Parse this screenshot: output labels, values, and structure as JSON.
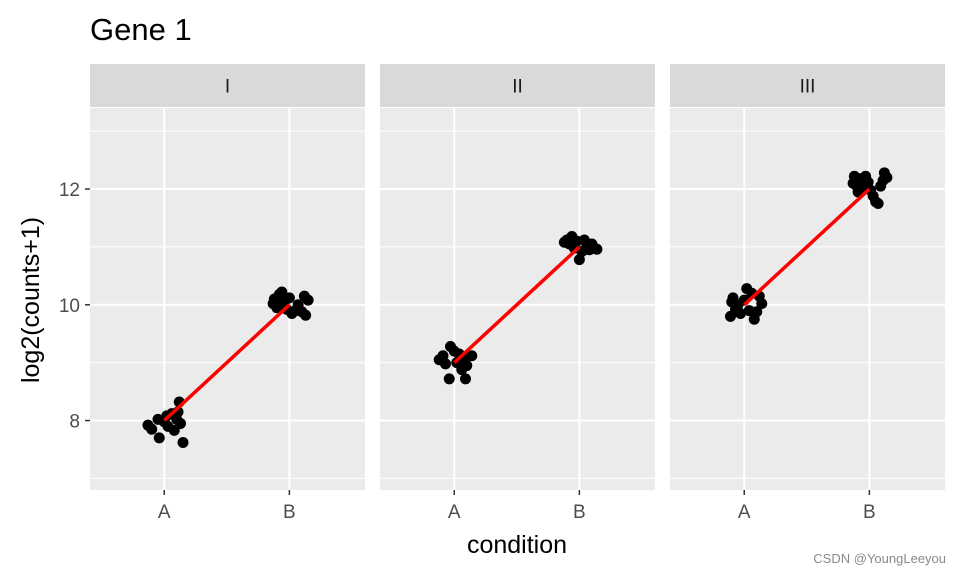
{
  "chart_data": {
    "type": "scatter",
    "title": "Gene 1",
    "xlabel": "condition",
    "ylabel": "log2(counts+1)",
    "categories": [
      "A",
      "B"
    ],
    "ylim": [
      6.8,
      13.4
    ],
    "y_ticks": [
      8,
      10,
      12
    ],
    "grid": true,
    "colors": {
      "panel_bg": "#ebebeb",
      "strip_bg": "#d9d9d9",
      "grid": "#ffffff",
      "points": "#000000",
      "fit_line": "#ff0000"
    },
    "panels": [
      {
        "label": "I",
        "fit": [
          {
            "x": "A",
            "y": 8.0
          },
          {
            "x": "B",
            "y": 10.0
          }
        ],
        "points": [
          {
            "x": "A",
            "jitter": -0.13,
            "y": 7.92
          },
          {
            "x": "A",
            "jitter": -0.1,
            "y": 7.85
          },
          {
            "x": "A",
            "jitter": -0.05,
            "y": 8.02
          },
          {
            "x": "A",
            "jitter": -0.04,
            "y": 7.7
          },
          {
            "x": "A",
            "jitter": 0.0,
            "y": 7.98
          },
          {
            "x": "A",
            "jitter": 0.02,
            "y": 8.08
          },
          {
            "x": "A",
            "jitter": 0.03,
            "y": 7.9
          },
          {
            "x": "A",
            "jitter": 0.06,
            "y": 8.12
          },
          {
            "x": "A",
            "jitter": 0.08,
            "y": 7.83
          },
          {
            "x": "A",
            "jitter": 0.1,
            "y": 8.02
          },
          {
            "x": "A",
            "jitter": 0.11,
            "y": 8.15
          },
          {
            "x": "A",
            "jitter": 0.12,
            "y": 8.32
          },
          {
            "x": "A",
            "jitter": 0.13,
            "y": 7.95
          },
          {
            "x": "A",
            "jitter": 0.15,
            "y": 7.62
          },
          {
            "x": "B",
            "jitter": -0.13,
            "y": 10.02
          },
          {
            "x": "B",
            "jitter": -0.12,
            "y": 10.1
          },
          {
            "x": "B",
            "jitter": -0.1,
            "y": 9.95
          },
          {
            "x": "B",
            "jitter": -0.08,
            "y": 10.18
          },
          {
            "x": "B",
            "jitter": -0.06,
            "y": 10.22
          },
          {
            "x": "B",
            "jitter": -0.04,
            "y": 10.05
          },
          {
            "x": "B",
            "jitter": -0.02,
            "y": 9.92
          },
          {
            "x": "B",
            "jitter": 0.0,
            "y": 10.12
          },
          {
            "x": "B",
            "jitter": 0.02,
            "y": 9.85
          },
          {
            "x": "B",
            "jitter": 0.05,
            "y": 9.9
          },
          {
            "x": "B",
            "jitter": 0.07,
            "y": 10.0
          },
          {
            "x": "B",
            "jitter": 0.1,
            "y": 9.88
          },
          {
            "x": "B",
            "jitter": 0.12,
            "y": 10.15
          },
          {
            "x": "B",
            "jitter": 0.13,
            "y": 9.82
          },
          {
            "x": "B",
            "jitter": 0.15,
            "y": 10.08
          }
        ]
      },
      {
        "label": "II",
        "fit": [
          {
            "x": "A",
            "y": 9.0
          },
          {
            "x": "B",
            "y": 11.0
          }
        ],
        "points": [
          {
            "x": "A",
            "jitter": -0.12,
            "y": 9.05
          },
          {
            "x": "A",
            "jitter": -0.09,
            "y": 9.12
          },
          {
            "x": "A",
            "jitter": -0.07,
            "y": 8.98
          },
          {
            "x": "A",
            "jitter": -0.04,
            "y": 8.72
          },
          {
            "x": "A",
            "jitter": -0.03,
            "y": 9.28
          },
          {
            "x": "A",
            "jitter": 0.0,
            "y": 9.2
          },
          {
            "x": "A",
            "jitter": 0.02,
            "y": 9.0
          },
          {
            "x": "A",
            "jitter": 0.04,
            "y": 9.15
          },
          {
            "x": "A",
            "jitter": 0.06,
            "y": 8.88
          },
          {
            "x": "A",
            "jitter": 0.08,
            "y": 9.08
          },
          {
            "x": "A",
            "jitter": 0.09,
            "y": 8.72
          },
          {
            "x": "A",
            "jitter": 0.1,
            "y": 8.95
          },
          {
            "x": "A",
            "jitter": 0.14,
            "y": 9.12
          },
          {
            "x": "B",
            "jitter": -0.12,
            "y": 11.08
          },
          {
            "x": "B",
            "jitter": -0.1,
            "y": 11.12
          },
          {
            "x": "B",
            "jitter": -0.08,
            "y": 11.05
          },
          {
            "x": "B",
            "jitter": -0.06,
            "y": 11.18
          },
          {
            "x": "B",
            "jitter": -0.04,
            "y": 10.98
          },
          {
            "x": "B",
            "jitter": -0.02,
            "y": 11.1
          },
          {
            "x": "B",
            "jitter": 0.0,
            "y": 10.78
          },
          {
            "x": "B",
            "jitter": 0.02,
            "y": 10.92
          },
          {
            "x": "B",
            "jitter": 0.04,
            "y": 11.12
          },
          {
            "x": "B",
            "jitter": 0.06,
            "y": 11.02
          },
          {
            "x": "B",
            "jitter": 0.08,
            "y": 10.95
          },
          {
            "x": "B",
            "jitter": 0.1,
            "y": 11.05
          },
          {
            "x": "B",
            "jitter": 0.12,
            "y": 10.98
          },
          {
            "x": "B",
            "jitter": 0.14,
            "y": 10.96
          }
        ]
      },
      {
        "label": "III",
        "fit": [
          {
            "x": "A",
            "y": 10.0
          },
          {
            "x": "B",
            "y": 12.0
          }
        ],
        "points": [
          {
            "x": "A",
            "jitter": -0.11,
            "y": 9.8
          },
          {
            "x": "A",
            "jitter": -0.1,
            "y": 10.05
          },
          {
            "x": "A",
            "jitter": -0.09,
            "y": 10.12
          },
          {
            "x": "A",
            "jitter": -0.07,
            "y": 9.92
          },
          {
            "x": "A",
            "jitter": -0.05,
            "y": 10.0
          },
          {
            "x": "A",
            "jitter": -0.03,
            "y": 9.85
          },
          {
            "x": "A",
            "jitter": 0.0,
            "y": 10.08
          },
          {
            "x": "A",
            "jitter": 0.02,
            "y": 10.28
          },
          {
            "x": "A",
            "jitter": 0.04,
            "y": 9.9
          },
          {
            "x": "A",
            "jitter": 0.06,
            "y": 10.2
          },
          {
            "x": "A",
            "jitter": 0.08,
            "y": 9.75
          },
          {
            "x": "A",
            "jitter": 0.1,
            "y": 9.88
          },
          {
            "x": "A",
            "jitter": 0.12,
            "y": 10.15
          },
          {
            "x": "A",
            "jitter": 0.14,
            "y": 10.02
          },
          {
            "x": "B",
            "jitter": -0.13,
            "y": 12.1
          },
          {
            "x": "B",
            "jitter": -0.12,
            "y": 12.22
          },
          {
            "x": "B",
            "jitter": -0.1,
            "y": 12.05
          },
          {
            "x": "B",
            "jitter": -0.09,
            "y": 11.95
          },
          {
            "x": "B",
            "jitter": -0.07,
            "y": 12.18
          },
          {
            "x": "B",
            "jitter": -0.05,
            "y": 12.02
          },
          {
            "x": "B",
            "jitter": -0.03,
            "y": 12.22
          },
          {
            "x": "B",
            "jitter": -0.01,
            "y": 12.12
          },
          {
            "x": "B",
            "jitter": 0.01,
            "y": 11.98
          },
          {
            "x": "B",
            "jitter": 0.03,
            "y": 11.88
          },
          {
            "x": "B",
            "jitter": 0.05,
            "y": 11.78
          },
          {
            "x": "B",
            "jitter": 0.07,
            "y": 11.75
          },
          {
            "x": "B",
            "jitter": 0.09,
            "y": 12.05
          },
          {
            "x": "B",
            "jitter": 0.11,
            "y": 12.15
          },
          {
            "x": "B",
            "jitter": 0.12,
            "y": 12.28
          },
          {
            "x": "B",
            "jitter": 0.14,
            "y": 12.2
          }
        ]
      }
    ]
  },
  "watermark": "CSDN @YoungLeeyou"
}
